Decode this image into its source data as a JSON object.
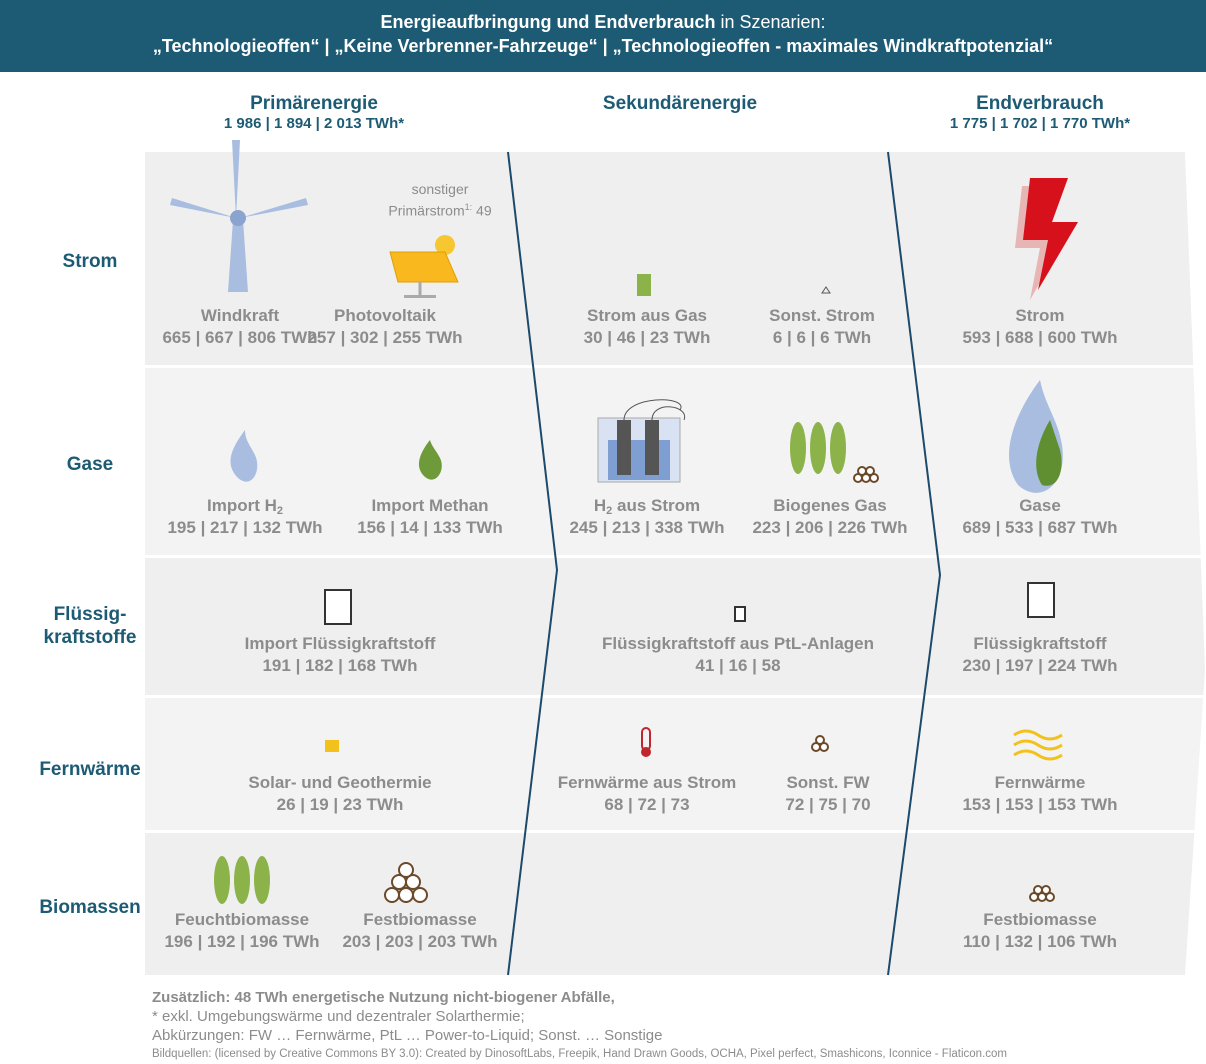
{
  "header": {
    "title_bold": "Energieaufbringung und Endverbrauch",
    "title_rest": "in Szenarien:",
    "subtitle": "„Technologieoffen“ | „Keine Verbrenner-Fahrzeuge“ | „Technologieoffen - maximales Windkraftpotenzial“"
  },
  "columns": [
    {
      "title": "Primärenergie",
      "total": "1 986 | 1 894 | 2 013 TWh*"
    },
    {
      "title": "Sekundärenergie"
    },
    {
      "title": "Endverbrauch",
      "total": "1 775 | 1 702 | 1 770 TWh*"
    }
  ],
  "rows": [
    {
      "label": [
        "Strom"
      ]
    },
    {
      "label": [
        "Gase"
      ]
    },
    {
      "label": [
        "Flüssig-",
        "kraftstoffe"
      ]
    },
    {
      "label": [
        "Fernwärme"
      ]
    },
    {
      "label": [
        "Biomassen"
      ]
    }
  ],
  "note": {
    "text": "sonstiger",
    "text2": "Primärstrom",
    "sup": "1:",
    "value": "49"
  },
  "items": [
    {
      "label": "Windkraft",
      "value": "665 | 667 | 806 TWh"
    },
    {
      "label": "Photovoltaik",
      "value": "257 | 302 | 255 TWh"
    },
    {
      "label": "Strom aus Gas",
      "value": "30 | 46 | 23 TWh"
    },
    {
      "label": "Sonst. Strom",
      "value": "6 | 6 | 6 TWh"
    },
    {
      "label": "Strom",
      "value": "593 | 688 | 600 TWh"
    },
    {
      "label": "Import H",
      "sub": "2",
      "value": "195 | 217 | 132 TWh"
    },
    {
      "label": "Import Methan",
      "value": "156 | 14 | 133 TWh"
    },
    {
      "label": "H",
      "sub": "2",
      "label2": " aus Strom",
      "value": "245 | 213 | 338 TWh"
    },
    {
      "label": "Biogenes Gas",
      "value": "223 | 206 | 226 TWh"
    },
    {
      "label": "Gase",
      "value": "689 | 533 | 687 TWh"
    },
    {
      "label": "Import Flüssigkraftstoff",
      "value": "191 | 182 | 168 TWh"
    },
    {
      "label": "Flüssigkraftstoff aus PtL-Anlagen",
      "value": "41 | 16 | 58"
    },
    {
      "label": "Flüssigkraftstoff",
      "value": "230 | 197 | 224 TWh"
    },
    {
      "label": "Solar- und Geothermie",
      "value": "26 | 19 | 23 TWh"
    },
    {
      "label": "Fernwärme aus Strom",
      "value": "68 | 72 | 73"
    },
    {
      "label": "Sonst. FW",
      "value": "72 | 75 | 70"
    },
    {
      "label": "Fernwärme",
      "value": "153 | 153 | 153 TWh"
    },
    {
      "label": "Feuchtbiomasse",
      "value": "196 | 192 | 196 TWh"
    },
    {
      "label": "Festbiomasse",
      "value": "203 | 203 | 203 TWh"
    },
    {
      "label": "Festbiomasse",
      "value": "110 | 132 | 106 TWh"
    }
  ],
  "footer": [
    "Zusätzlich: 48 TWh energetische Nutzung nicht-biogener Abfälle,",
    "* exkl. Umgebungswärme und dezentraler Solarthermie;",
    "Abkürzungen: FW … Fernwärme, PtL … Power-to-Liquid; Sonst. … Sonstige",
    "Bildquellen: (licensed by Creative Commons BY 3.0): Created by DinosoftLabs, Freepik, Hand Drawn Goods, OCHA, Pixel perfect, Smashicons, Iconnice - Flaticon.com"
  ]
}
